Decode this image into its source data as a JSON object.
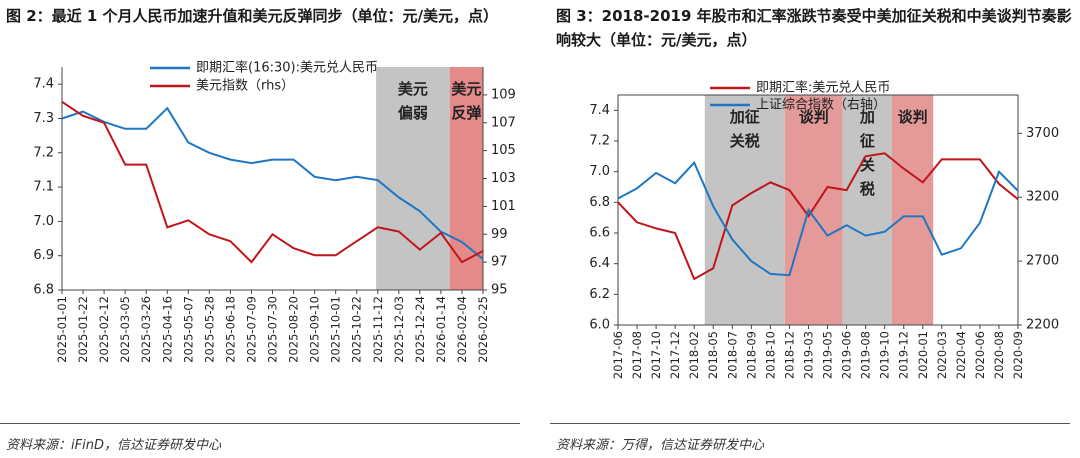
{
  "chart_data": [
    {
      "type": "line",
      "title": "图 2：最近 1 个月人民币加速升值和美元反弹同步（单位：元/美元，点）",
      "source": "资料来源：iFinD，信达证券研发中心",
      "categories": [
        "2025-01-01",
        "2025-01-22",
        "2025-02-12",
        "2025-03-05",
        "2025-03-26",
        "2025-04-16",
        "2025-05-07",
        "2025-05-28",
        "2025-06-18",
        "2025-07-09",
        "2025-07-30",
        "2025-08-20",
        "2025-09-10",
        "2025-10-01",
        "2025-10-22",
        "2025-11-12",
        "2025-12-03",
        "2025-12-24",
        "2026-01-14",
        "2026-02-04",
        "2026-02-25"
      ],
      "series": [
        {
          "name": "即期汇率(16:30):美元兑人民币",
          "color": "#1f77c4",
          "values": [
            7.3,
            7.32,
            7.29,
            7.27,
            7.27,
            7.33,
            7.23,
            7.2,
            7.18,
            7.17,
            7.18,
            7.18,
            7.13,
            7.12,
            7.13,
            7.12,
            7.07,
            7.03,
            6.97,
            6.94,
            6.89
          ]
        },
        {
          "name": "美元指数（rhs）",
          "color": "#c0151b",
          "axis": "y2",
          "values": [
            108.5,
            107.5,
            107,
            104,
            104,
            99.5,
            100,
            99,
            98.5,
            97,
            99,
            98,
            97.5,
            97.5,
            98.5,
            99.5,
            99.2,
            97.9,
            99.1,
            97,
            97.8
          ]
        }
      ],
      "ylim": [
        6.8,
        7.45
      ],
      "yticks": [
        6.8,
        6.9,
        {
          "value": 7,
          "label": "7.0"
        },
        7.1,
        7.2,
        7.3,
        7.4
      ],
      "y2lim": [
        95,
        111
      ],
      "y2ticks": [
        95,
        97,
        99,
        101,
        103,
        105,
        107,
        109
      ],
      "annotations": [
        {
          "text": "美元偏弱"
        },
        {
          "text": "美元反弹"
        }
      ]
    },
    {
      "type": "line",
      "title": "图 3：2018-2019 年股市和汇率涨跌节奏受中美加征关税和中美谈判节奏影响较大（单位：元/美元，点）",
      "source": "资料来源：万得，信达证券研发中心",
      "categories": [
        "2017-06",
        "2017-08",
        "2017-10",
        "2017-12",
        "2018-02",
        "2018-05",
        "2018-07",
        "2018-09",
        "2018-10",
        "2018-12",
        "2019-03",
        "2019-05",
        "2019-06",
        "2019-08",
        "2019-10",
        "2019-12",
        "2020-01",
        "2020-03",
        "2020-04",
        "2020-06",
        "2020-08",
        "2020-09"
      ],
      "series": [
        {
          "name": "即期汇率:美元兑人民币",
          "color": "#c0151b",
          "values": [
            6.8,
            6.67,
            6.63,
            6.6,
            6.3,
            6.37,
            6.78,
            6.86,
            6.93,
            6.88,
            6.71,
            6.9,
            6.88,
            7.1,
            7.12,
            7.02,
            6.93,
            7.08,
            7.08,
            7.08,
            6.92,
            6.82
          ]
        },
        {
          "name": "上证综合指数（右轴）",
          "color": "#1f77c4",
          "axis": "y2",
          "values": [
            3190,
            3270,
            3390,
            3310,
            3470,
            3130,
            2870,
            2700,
            2600,
            2590,
            3100,
            2900,
            2980,
            2900,
            2930,
            3050,
            3050,
            2750,
            2800,
            3000,
            3400,
            3250
          ]
        }
      ],
      "ylim": [
        6.0,
        7.5
      ],
      "yticks": [
        {
          "value": 6,
          "label": "6.0"
        },
        6.2,
        6.4,
        6.6,
        6.8,
        {
          "value": 7,
          "label": "7.0"
        },
        7.2,
        7.4
      ],
      "y2lim": [
        2200,
        4000
      ],
      "y2ticks": [
        2200,
        2700,
        3200,
        3700
      ],
      "annotations": [
        {
          "text": "加征关税"
        },
        {
          "text": "谈判"
        },
        {
          "text": "加征关税"
        },
        {
          "text": "谈判"
        }
      ]
    }
  ]
}
